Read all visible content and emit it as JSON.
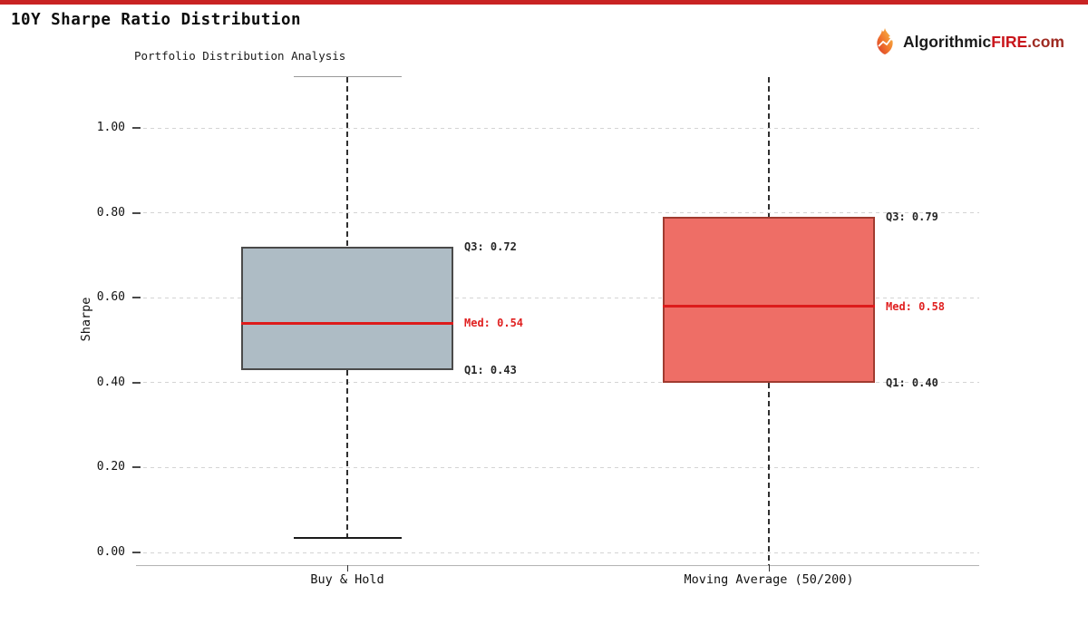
{
  "header": {
    "title": "10Y Sharpe Ratio Distribution",
    "accent_color": "#c92323",
    "brand": {
      "icon": "flame-icon",
      "part_black": "Algorithmic",
      "part_red": "FIRE",
      "part_suffix": ".com"
    }
  },
  "chart_data": {
    "type": "boxplot",
    "title": "Portfolio Distribution Analysis",
    "ylabel": "Sharpe",
    "ylim": [
      0.0,
      1.12
    ],
    "grid": "horizontal-dashed",
    "legend": "none",
    "yticks": [
      0.0,
      0.2,
      0.4,
      0.6,
      0.8,
      1.0
    ],
    "ytick_labels": [
      "0.00",
      "0.20",
      "0.40",
      "0.60",
      "0.80",
      "1.00"
    ],
    "categories": [
      "Buy & Hold",
      "Moving Average (50/200)"
    ],
    "median_color": "#dd1b1b",
    "median_label_color": "#e02020",
    "series": [
      {
        "name": "Buy & Hold",
        "q1": 0.43,
        "median": 0.54,
        "q3": 0.72,
        "whisker_high": 1.12,
        "whisker_high_capped": true,
        "whisker_low": 0.034,
        "whisker_low_capped": true,
        "fill_color": "#aebcc5",
        "edge_color": "#4a4a4a",
        "labels": {
          "q3": "Q3: 0.72",
          "med": "Med: 0.54",
          "q1": "Q1: 0.43"
        }
      },
      {
        "name": "Moving Average (50/200)",
        "q1": 0.4,
        "median": 0.58,
        "q3": 0.79,
        "whisker_high": 1.12,
        "whisker_high_capped": false,
        "whisker_low": -0.03,
        "whisker_low_capped": false,
        "fill_color": "#ee6e66",
        "edge_color": "#a03b30",
        "labels": {
          "q3": "Q3: 0.79",
          "med": "Med: 0.58",
          "q1": "Q1: 0.40"
        }
      }
    ]
  }
}
